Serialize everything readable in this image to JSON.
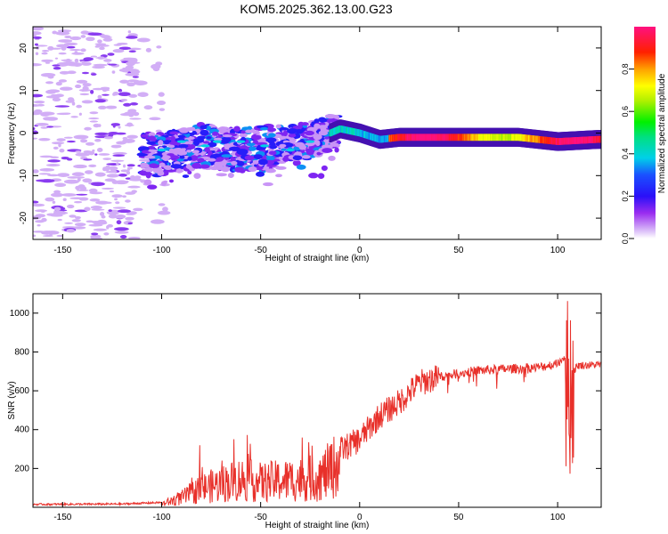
{
  "chart_data": [
    {
      "type": "heatmap",
      "title": "KOM5.2025.362.13.00.G23",
      "xlabel": "Height of straight line (km)",
      "ylabel": "Frequency (Hz)",
      "xlim": [
        -165,
        122
      ],
      "ylim": [
        -25,
        25
      ],
      "xticks": [
        -150,
        -100,
        -50,
        0,
        50,
        100
      ],
      "yticks": [
        -20,
        -10,
        0,
        10,
        20
      ],
      "colorbar": {
        "label": "Normalized spectral amplitude",
        "range": [
          0,
          1
        ],
        "ticks": [
          "0.0",
          "0.2",
          "0.4",
          "0.6",
          "0.8"
        ],
        "tick_values": [
          0.0,
          0.2,
          0.4,
          0.6,
          0.8
        ]
      },
      "ridge": {
        "description_points_x": [
          -100,
          -80,
          -60,
          -40,
          -20,
          -10,
          0,
          10,
          20,
          40,
          60,
          80,
          100,
          120
        ],
        "description_points_freq": [
          -5,
          -3,
          -4,
          -3,
          -1,
          1,
          0,
          -1.5,
          -1,
          -1,
          -1,
          -1,
          -2,
          -1.5
        ]
      }
    },
    {
      "type": "line",
      "xlabel": "Height of straight line (km)",
      "ylabel": "SNR (v/v)",
      "xlim": [
        -165,
        122
      ],
      "ylim": [
        0,
        1100
      ],
      "xticks": [
        -150,
        -100,
        -50,
        0,
        50,
        100
      ],
      "yticks": [
        200,
        400,
        600,
        800,
        1000
      ],
      "color": "#e8302a",
      "envelope_x": [
        -165,
        -120,
        -100,
        -90,
        -80,
        -70,
        -60,
        -50,
        -40,
        -30,
        -20,
        -10,
        0,
        10,
        20,
        30,
        40,
        50,
        60,
        70,
        80,
        90,
        100,
        104,
        106,
        108,
        110,
        122
      ],
      "envelope_y": [
        10,
        12,
        20,
        60,
        120,
        150,
        180,
        160,
        170,
        180,
        190,
        290,
        350,
        470,
        540,
        640,
        670,
        690,
        705,
        710,
        715,
        720,
        740,
        780,
        900,
        700,
        730,
        735
      ]
    }
  ]
}
